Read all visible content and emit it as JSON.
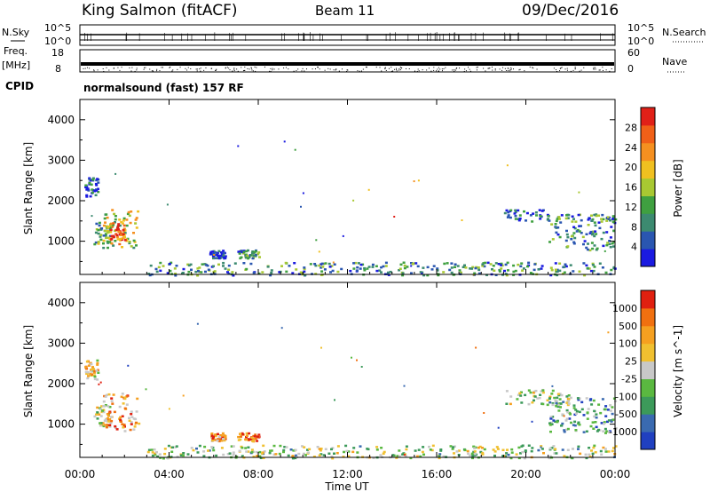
{
  "header": {
    "station": "King Salmon (fitACF)",
    "beam": "Beam 11",
    "date": "09/Dec/2016"
  },
  "top_panels": {
    "nsky_label": "N.Sky",
    "nsky_ticks": [
      "10^5",
      "10^0"
    ],
    "nsearch_label": "N.Search",
    "nsearch_ticks": [
      "10^5",
      "10^0"
    ],
    "freq_label": "Freq.",
    "freq_unit": "[MHz]",
    "freq_ticks": [
      "18",
      "8"
    ],
    "nave_label": "Nave",
    "nave_ticks": [
      "60",
      "0"
    ],
    "cpid_label": "CPID",
    "cpid_text": "normalsound (fast) 157 RF"
  },
  "colors": {
    "power": [
      "#1a1ae0",
      "#2a56b0",
      "#3c8a70",
      "#3fa040",
      "#a8c832",
      "#f0c020",
      "#f59020",
      "#f06018",
      "#e02018"
    ],
    "velocity": [
      "#2040c0",
      "#3a6ab0",
      "#3c9a5a",
      "#5ab840",
      "#c8c8c8",
      "#f0c030",
      "#f5a020",
      "#f07010",
      "#e02010"
    ]
  },
  "chart_data": [
    {
      "type": "heatmap",
      "name": "power",
      "xlabel": "",
      "ylabel": "Slant Range [km]",
      "xlim": [
        "00:00",
        "24:00"
      ],
      "ylim": [
        180,
        4500
      ],
      "y_ticks": [
        1000,
        2000,
        3000,
        4000
      ],
      "colorbar": {
        "label": "Power [dB]",
        "min": 0,
        "max": 32,
        "ticks": [
          4,
          8,
          12,
          16,
          20,
          24,
          28
        ]
      },
      "regions": [
        {
          "t0": 0.6,
          "t1": 1.4,
          "r0": 950,
          "r1": 1500,
          "level": 0.35
        },
        {
          "t0": 1.0,
          "t1": 2.6,
          "r0": 850,
          "r1": 1800,
          "level": 0.55
        },
        {
          "t0": 1.3,
          "t1": 2.0,
          "r0": 950,
          "r1": 1500,
          "level": 0.85
        },
        {
          "t0": 0.2,
          "t1": 0.8,
          "r0": 2100,
          "r1": 2600,
          "level": 0.15
        },
        {
          "t0": 5.8,
          "t1": 6.5,
          "r0": 600,
          "r1": 800,
          "level": 0.1
        },
        {
          "t0": 7.0,
          "t1": 8.0,
          "r0": 600,
          "r1": 800,
          "level": 0.3
        },
        {
          "t0": 3.0,
          "t1": 24.0,
          "r0": 180,
          "r1": 500,
          "level": 0.3
        },
        {
          "t0": 19.0,
          "t1": 21.0,
          "r0": 1500,
          "r1": 1800,
          "level": 0.15
        },
        {
          "t0": 21.0,
          "t1": 24.0,
          "r0": 800,
          "r1": 1700,
          "level": 0.3
        }
      ]
    },
    {
      "type": "heatmap",
      "name": "velocity",
      "xlabel": "Time UT",
      "ylabel": "Slant Range [km]",
      "xlim": [
        "00:00",
        "24:00"
      ],
      "ylim": [
        180,
        4500
      ],
      "x_ticks": [
        "00:00",
        "04:00",
        "08:00",
        "12:00",
        "16:00",
        "20:00",
        "00:00"
      ],
      "y_ticks": [
        1000,
        2000,
        3000,
        4000
      ],
      "colorbar": {
        "label": "Velocity [m s^-1]",
        "ticks": [
          1000,
          500,
          100,
          25,
          -25,
          -100,
          -500,
          -1000
        ]
      },
      "regions": [
        {
          "t0": 0.6,
          "t1": 1.4,
          "r0": 950,
          "r1": 1500,
          "level": 0.5
        },
        {
          "t0": 1.0,
          "t1": 2.6,
          "r0": 850,
          "r1": 1800,
          "level": 0.7
        },
        {
          "t0": 0.2,
          "t1": 0.8,
          "r0": 2100,
          "r1": 2600,
          "level": 0.6
        },
        {
          "t0": 5.8,
          "t1": 6.5,
          "r0": 600,
          "r1": 800,
          "level": 0.7
        },
        {
          "t0": 7.0,
          "t1": 8.0,
          "r0": 600,
          "r1": 800,
          "level": 0.8
        },
        {
          "t0": 3.0,
          "t1": 24.0,
          "r0": 180,
          "r1": 500,
          "level": 0.45
        },
        {
          "t0": 19.0,
          "t1": 22.0,
          "r0": 1500,
          "r1": 1900,
          "level": 0.45
        },
        {
          "t0": 21.0,
          "t1": 24.0,
          "r0": 800,
          "r1": 1700,
          "level": 0.3
        }
      ]
    }
  ]
}
